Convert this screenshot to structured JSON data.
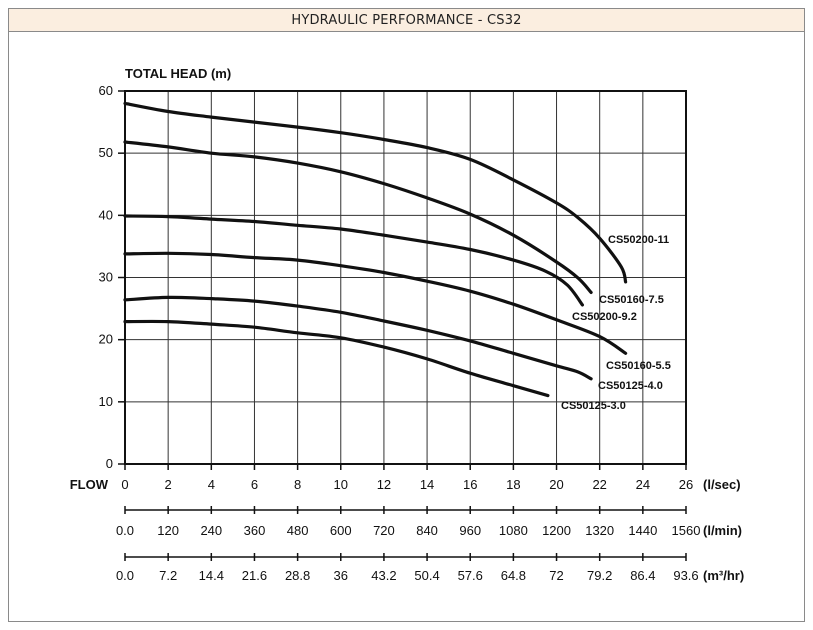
{
  "title": "HYDRAULIC PERFORMANCE - CS32",
  "chart_data": {
    "type": "line",
    "ylabel": "TOTAL HEAD (m)",
    "xlabel": "FLOW",
    "ylim": [
      0,
      60
    ],
    "xlim": [
      0,
      26
    ],
    "grid": true,
    "y_ticks": [
      "0",
      "10",
      "20",
      "30",
      "40",
      "50",
      "60"
    ],
    "x_axes": [
      {
        "unit": "(l/sec)",
        "ticks": [
          "0",
          "2",
          "4",
          "6",
          "8",
          "10",
          "12",
          "14",
          "16",
          "18",
          "20",
          "22",
          "24",
          "26"
        ]
      },
      {
        "unit": "(l/min)",
        "ticks": [
          "0.0",
          "120",
          "240",
          "360",
          "480",
          "600",
          "720",
          "840",
          "960",
          "1080",
          "1200",
          "1320",
          "1440",
          "1560"
        ]
      },
      {
        "unit": "(m³/hr)",
        "ticks": [
          "0.0",
          "7.2",
          "14.4",
          "21.6",
          "28.8",
          "36",
          "43.2",
          "50.4",
          "57.6",
          "64.8",
          "72",
          "79.2",
          "86.4",
          "93.6"
        ]
      }
    ],
    "series": [
      {
        "name": "CS50200-11",
        "x": [
          0,
          2,
          4,
          6,
          8,
          10,
          12,
          14,
          16,
          18,
          20,
          21,
          22,
          23,
          23.2
        ],
        "y": [
          58,
          56.7,
          55.8,
          55,
          54.2,
          53.3,
          52.2,
          50.9,
          49,
          45.7,
          42,
          39.6,
          36.3,
          31.7,
          29.3
        ]
      },
      {
        "name": "CS50160-7.5",
        "x": [
          0,
          2,
          4,
          6,
          8,
          10,
          12,
          14,
          16,
          18,
          20,
          21,
          21.6
        ],
        "y": [
          51.8,
          51,
          50,
          49.4,
          48.4,
          47,
          45.1,
          42.8,
          40.2,
          36.8,
          32.5,
          29.9,
          27.6
        ]
      },
      {
        "name": "CS50200-9.2",
        "x": [
          0,
          2,
          4,
          6,
          8,
          10,
          12,
          14,
          16,
          18,
          19.5,
          20.5,
          21.2
        ],
        "y": [
          39.9,
          39.8,
          39.4,
          39,
          38.4,
          37.8,
          36.8,
          35.7,
          34.5,
          32.8,
          31,
          28.8,
          25.6
        ]
      },
      {
        "name": "CS50160-5.5",
        "x": [
          0,
          2,
          4,
          6,
          8,
          10,
          12,
          14,
          16,
          18,
          20,
          22,
          23.2
        ],
        "y": [
          33.8,
          33.9,
          33.7,
          33.2,
          32.8,
          31.9,
          30.8,
          29.4,
          27.8,
          25.7,
          23.2,
          20.5,
          17.8
        ]
      },
      {
        "name": "CS50125-4.0",
        "x": [
          0,
          2,
          4,
          6,
          8,
          10,
          12,
          14,
          16,
          18,
          20,
          21,
          21.6
        ],
        "y": [
          26.4,
          26.8,
          26.6,
          26.2,
          25.4,
          24.4,
          23,
          21.5,
          19.8,
          17.8,
          15.8,
          14.8,
          13.7
        ]
      },
      {
        "name": "CS50125-3.0",
        "x": [
          0,
          2,
          4,
          6,
          8,
          10,
          12,
          14,
          16,
          18,
          19.6
        ],
        "y": [
          22.9,
          22.9,
          22.5,
          22,
          21.1,
          20.3,
          18.8,
          16.9,
          14.6,
          12.6,
          11
        ]
      }
    ]
  }
}
